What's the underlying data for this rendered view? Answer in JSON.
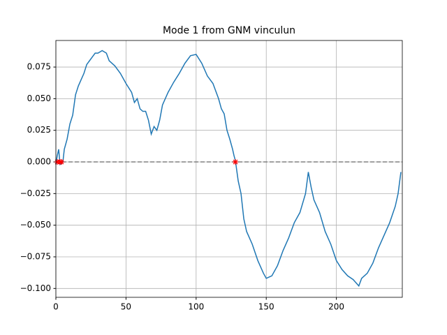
{
  "chart_data": {
    "type": "line",
    "title": "Mode 1 from GNM vinculun",
    "x": [
      0,
      1,
      2,
      3,
      5,
      6,
      8,
      10,
      12,
      14,
      16,
      18,
      20,
      22,
      24,
      26,
      28,
      30,
      33,
      36,
      38,
      42,
      46,
      50,
      54,
      56,
      58,
      60,
      62,
      64,
      66,
      68,
      70,
      72,
      74,
      76,
      80,
      84,
      88,
      92,
      96,
      100,
      104,
      108,
      112,
      116,
      118,
      120,
      122,
      124,
      126,
      127,
      128,
      130,
      132,
      134,
      136,
      140,
      144,
      148,
      150,
      154,
      158,
      162,
      166,
      170,
      174,
      178,
      180,
      182,
      184,
      188,
      192,
      196,
      200,
      204,
      208,
      212,
      216,
      218,
      222,
      226,
      230,
      234,
      238,
      242,
      244,
      246
    ],
    "series": [
      {
        "color": "#1f77b4",
        "values": [
          -0.002,
          0.005,
          0.01,
          -0.002,
          0.0,
          0.01,
          0.018,
          0.03,
          0.037,
          0.053,
          0.06,
          0.065,
          0.07,
          0.077,
          0.08,
          0.083,
          0.086,
          0.086,
          0.088,
          0.086,
          0.08,
          0.076,
          0.07,
          0.062,
          0.055,
          0.047,
          0.05,
          0.042,
          0.04,
          0.04,
          0.033,
          0.022,
          0.028,
          0.025,
          0.033,
          0.045,
          0.055,
          0.063,
          0.07,
          0.078,
          0.084,
          0.085,
          0.078,
          0.068,
          0.062,
          0.05,
          0.042,
          0.038,
          0.025,
          0.018,
          0.01,
          0.005,
          0.001,
          -0.015,
          -0.025,
          -0.045,
          -0.055,
          -0.065,
          -0.078,
          -0.088,
          -0.092,
          -0.09,
          -0.082,
          -0.07,
          -0.06,
          -0.048,
          -0.04,
          -0.025,
          -0.008,
          -0.02,
          -0.03,
          -0.04,
          -0.055,
          -0.065,
          -0.078,
          -0.085,
          -0.09,
          -0.093,
          -0.098,
          -0.092,
          -0.088,
          -0.08,
          -0.068,
          -0.058,
          -0.048,
          -0.035,
          -0.025,
          -0.008
        ]
      }
    ],
    "markers": {
      "x": [
        1,
        3,
        4,
        128
      ],
      "values": [
        0,
        0,
        0,
        0
      ],
      "color": "red"
    },
    "reference_line": {
      "value": 0,
      "color": "gray"
    },
    "xlim": [
      0,
      247
    ],
    "ylim": [
      -0.107,
      0.096
    ],
    "xticks": [
      0,
      50,
      100,
      150,
      200
    ],
    "yticks": [
      {
        "value": -0.1,
        "label": "−0.100"
      },
      {
        "value": -0.075,
        "label": "−0.075"
      },
      {
        "value": -0.05,
        "label": "−0.050"
      },
      {
        "value": -0.025,
        "label": "−0.025"
      },
      {
        "value": 0,
        "label": "0.000"
      },
      {
        "value": 0.025,
        "label": "0.025"
      },
      {
        "value": 0.05,
        "label": "0.050"
      },
      {
        "value": 0.075,
        "label": "0.075"
      }
    ],
    "grid": true
  }
}
